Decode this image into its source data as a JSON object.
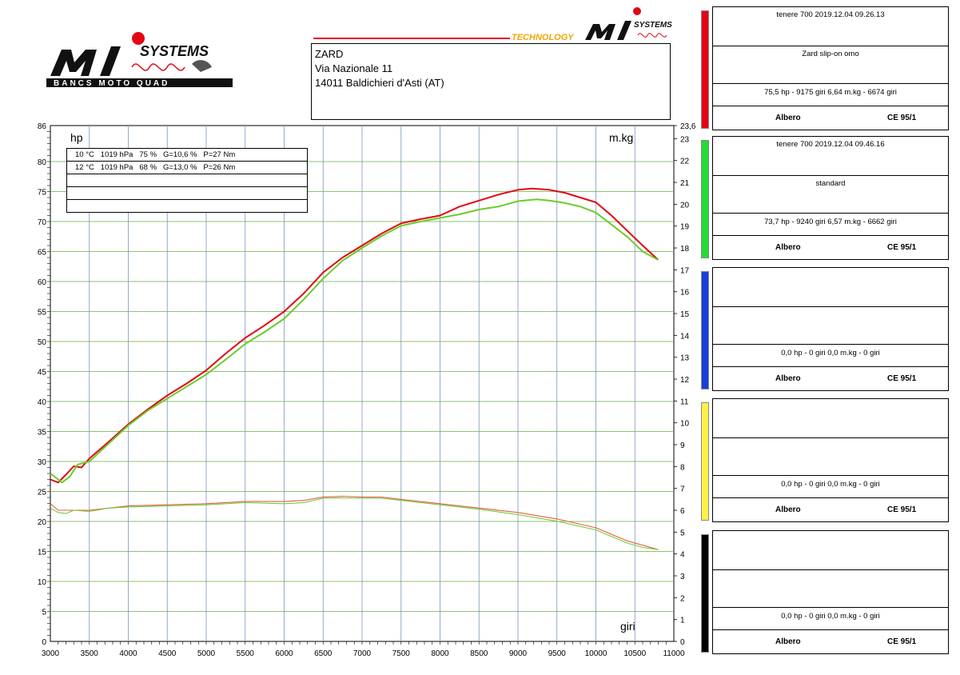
{
  "logo": {
    "systems": "SYSTEMS",
    "mi": "MI",
    "tagline": "BANCS MOTO QUAD",
    "technology": "TECHNOLOGY"
  },
  "address": {
    "line1": "ZARD",
    "line2": "Via Nazionale 11",
    "line3": "14011 Baldichieri d'Asti (AT)"
  },
  "conditions": [
    "10 °C   1019 hPa   75 %   G=10,6 %   P=27 Nm",
    "12 °C   1019 hPa   68 %   G=13,0 %   P=26 Nm",
    "",
    "",
    ""
  ],
  "panels": [
    {
      "color": "#e30613",
      "title": "tenere 700   2019.12.04 09.26.13",
      "desc": "Zard slip-on omo",
      "summary": "75,5 hp - 9175 giri    6,64 m.kg - 6674 giri",
      "left": "Albero",
      "right": "CE 95/1"
    },
    {
      "color": "#22dd33",
      "title": "tenere 700   2019.12.04 09.46.16",
      "desc": "standard",
      "summary": "73,7 hp - 9240 giri    6,57 m.kg - 6662 giri",
      "left": "Albero",
      "right": "CE 95/1"
    },
    {
      "color": "#1740d8",
      "title": "",
      "desc": "",
      "summary": "0,0 hp - 0 giri      0,0 m.kg - 0 giri",
      "left": "Albero",
      "right": "CE 95/1"
    },
    {
      "color": "#fff04a",
      "title": "",
      "desc": "",
      "summary": "0,0 hp - 0 giri      0,0 m.kg - 0 giri",
      "left": "Albero",
      "right": "CE 95/1"
    },
    {
      "color": "#000000",
      "title": "",
      "desc": "",
      "summary": "0,0 hp - 0 giri      0,0 m.kg - 0 giri",
      "left": "Albero",
      "right": "CE 95/1"
    }
  ],
  "chart_data": {
    "type": "line",
    "xlabel": "giri",
    "ylabel_left": "hp",
    "ylabel_right": "m.kg",
    "xlim": [
      3000,
      11000
    ],
    "ylim_left": [
      0,
      86
    ],
    "ylim_right": [
      0,
      23.6
    ],
    "x_ticks": [
      3000,
      3500,
      4000,
      4500,
      5000,
      5500,
      6000,
      6500,
      7000,
      7500,
      8000,
      8500,
      9000,
      9500,
      10000,
      10500,
      11000
    ],
    "y_left_ticks": [
      0,
      5,
      10,
      15,
      20,
      25,
      30,
      35,
      40,
      45,
      50,
      55,
      60,
      65,
      70,
      75,
      80,
      86
    ],
    "y_right_ticks": [
      "0",
      "1",
      "2",
      "3",
      "4",
      "5",
      "6",
      "7",
      "8",
      "9",
      "10",
      "11",
      "12",
      "13",
      "14",
      "15",
      "16",
      "17",
      "18",
      "19",
      "20",
      "21",
      "22",
      "23",
      "23,6"
    ],
    "grid": true,
    "series": [
      {
        "color": "#e30613",
        "axis": "left",
        "x": [
          3000,
          3100,
          3200,
          3300,
          3400,
          3500,
          3750,
          4000,
          4250,
          4500,
          4750,
          5000,
          5250,
          5500,
          5750,
          6000,
          6250,
          6500,
          6750,
          7000,
          7250,
          7500,
          7750,
          8000,
          8250,
          8500,
          8750,
          9000,
          9175,
          9400,
          9600,
          9800,
          10000,
          10200,
          10400,
          10600,
          10800
        ],
        "values": [
          27.0,
          26.5,
          27.8,
          29.2,
          29.0,
          30.5,
          33.3,
          36.2,
          38.7,
          41.0,
          43.0,
          45.2,
          48.0,
          50.6,
          52.7,
          55.0,
          58.0,
          61.5,
          64.0,
          66.0,
          68.0,
          69.7,
          70.4,
          71.0,
          72.5,
          73.5,
          74.5,
          75.3,
          75.5,
          75.3,
          74.8,
          74.0,
          73.2,
          71.0,
          68.5,
          66.0,
          63.6
        ]
      },
      {
        "color": "#6acc2a",
        "axis": "left",
        "x": [
          3000,
          3100,
          3150,
          3250,
          3350,
          3500,
          3750,
          4000,
          4250,
          4500,
          4750,
          5000,
          5250,
          5500,
          5750,
          6000,
          6250,
          6500,
          6750,
          7000,
          7250,
          7500,
          7750,
          8000,
          8250,
          8500,
          8750,
          9000,
          9240,
          9400,
          9600,
          9800,
          10000,
          10200,
          10400,
          10600,
          10800
        ],
        "values": [
          28.0,
          27.0,
          26.5,
          27.5,
          29.5,
          30.0,
          33.0,
          36.0,
          38.5,
          40.5,
          42.5,
          44.5,
          47.0,
          49.6,
          51.6,
          53.8,
          57.0,
          60.5,
          63.5,
          65.6,
          67.6,
          69.3,
          70.0,
          70.6,
          71.2,
          72.0,
          72.5,
          73.4,
          73.7,
          73.5,
          73.1,
          72.5,
          71.5,
          69.5,
          67.5,
          65.0,
          63.6
        ]
      },
      {
        "color": "#e06040",
        "axis": "right",
        "x": [
          3000,
          3100,
          3250,
          3350,
          3500,
          3750,
          4000,
          4500,
          5000,
          5500,
          6000,
          6250,
          6500,
          6750,
          7000,
          7250,
          7500,
          8000,
          8500,
          9000,
          9500,
          10000,
          10200,
          10400,
          10600,
          10800
        ],
        "values": [
          6.3,
          6.0,
          6.0,
          6.0,
          6.0,
          6.1,
          6.2,
          6.25,
          6.3,
          6.4,
          6.4,
          6.45,
          6.6,
          6.64,
          6.6,
          6.6,
          6.5,
          6.3,
          6.1,
          5.9,
          5.6,
          5.2,
          4.9,
          4.6,
          4.4,
          4.2
        ]
      },
      {
        "color": "#78c83a",
        "axis": "right",
        "x": [
          3000,
          3100,
          3200,
          3300,
          3500,
          3750,
          4000,
          4500,
          5000,
          5500,
          6000,
          6250,
          6500,
          6662,
          7000,
          7250,
          7500,
          8000,
          8500,
          9000,
          9500,
          10000,
          10200,
          10400,
          10600,
          10800
        ],
        "values": [
          6.1,
          5.9,
          5.85,
          6.0,
          5.95,
          6.1,
          6.15,
          6.2,
          6.25,
          6.35,
          6.3,
          6.35,
          6.55,
          6.57,
          6.55,
          6.55,
          6.45,
          6.25,
          6.05,
          5.8,
          5.5,
          5.1,
          4.8,
          4.5,
          4.3,
          4.2
        ]
      }
    ]
  }
}
